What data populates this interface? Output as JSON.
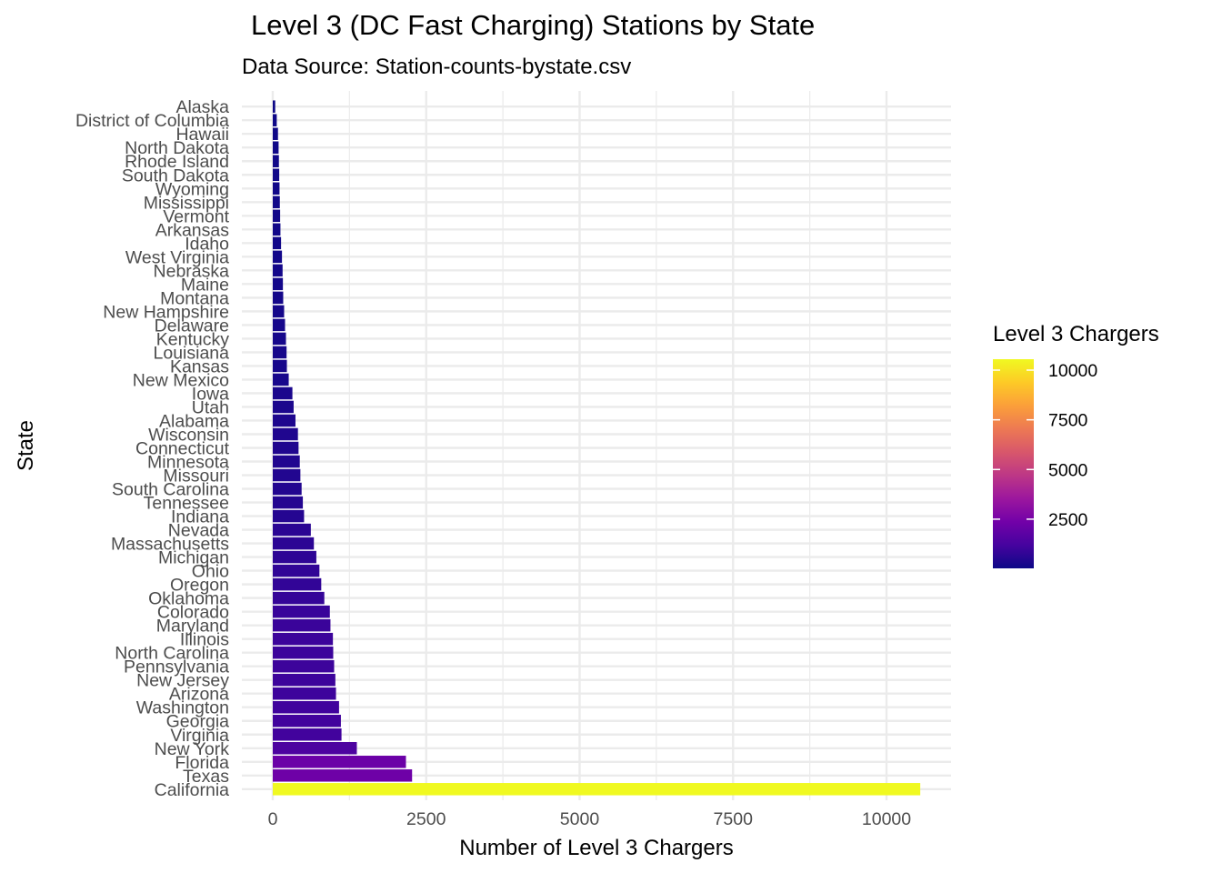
{
  "chart_data": {
    "type": "bar",
    "orientation": "horizontal",
    "title": "Level 3 (DC Fast Charging) Stations by State",
    "subtitle": "Data Source: Station-counts-bystate.csv",
    "xlabel": "Number of Level 3 Chargers",
    "ylabel": "State",
    "xlim": [
      0,
      11000
    ],
    "x_ticks": [
      "0",
      "2500",
      "5000",
      "7500",
      "10000"
    ],
    "x_tick_values": [
      0,
      2500,
      5000,
      7500,
      10000
    ],
    "grid": true,
    "legend": {
      "title": "Level 3 Chargers",
      "placement": "right",
      "type": "colorbar",
      "range": [
        25,
        10550
      ],
      "ticks": [
        "2500",
        "5000",
        "7500",
        "10000"
      ],
      "tick_values": [
        2500,
        5000,
        7500,
        10000
      ],
      "colors": [
        "#0d0887",
        "#46039f",
        "#7201a8",
        "#9c179e",
        "#bd3786",
        "#d8576b",
        "#ed7953",
        "#fb9f3a",
        "#fdca26",
        "#f0f921"
      ]
    },
    "categories": [
      "Alaska",
      "District of Columbia",
      "Hawaii",
      "North Dakota",
      "Rhode Island",
      "South Dakota",
      "Wyoming",
      "Mississippi",
      "Vermont",
      "Arkansas",
      "Idaho",
      "West Virginia",
      "Nebraska",
      "Maine",
      "Montana",
      "New Hampshire",
      "Delaware",
      "Kentucky",
      "Louisiana",
      "Kansas",
      "New Mexico",
      "Iowa",
      "Utah",
      "Alabama",
      "Wisconsin",
      "Connecticut",
      "Minnesota",
      "Missouri",
      "South Carolina",
      "Tennessee",
      "Indiana",
      "Nevada",
      "Massachusetts",
      "Michigan",
      "Ohio",
      "Oregon",
      "Oklahoma",
      "Colorado",
      "Maryland",
      "Illinois",
      "North Carolina",
      "Pennsylvania",
      "New Jersey",
      "Arizona",
      "Washington",
      "Georgia",
      "Virginia",
      "New York",
      "Florida",
      "Texas",
      "California"
    ],
    "values": [
      40,
      65,
      85,
      95,
      100,
      105,
      110,
      115,
      120,
      125,
      135,
      150,
      160,
      165,
      170,
      185,
      200,
      215,
      225,
      230,
      260,
      320,
      340,
      370,
      410,
      420,
      440,
      450,
      470,
      490,
      510,
      620,
      670,
      710,
      760,
      790,
      840,
      930,
      940,
      980,
      985,
      1000,
      1020,
      1030,
      1080,
      1110,
      1120,
      1370,
      2170,
      2270,
      10550
    ]
  }
}
